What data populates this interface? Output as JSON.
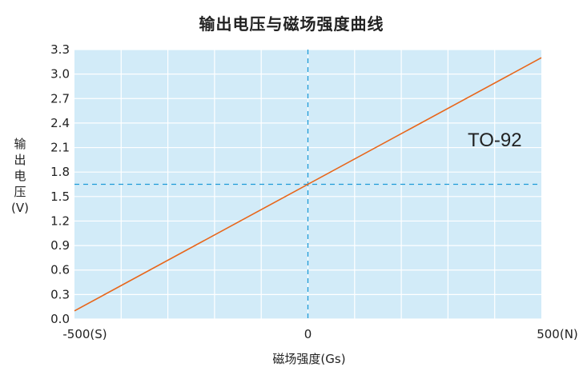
{
  "chart_data": {
    "type": "line",
    "title": "输出电压与磁场强度曲线",
    "xlabel": "磁场强度(Gs)",
    "ylabel_chars": [
      "输",
      "出",
      "电",
      "压",
      "(V)"
    ],
    "xlim": [
      -500,
      500
    ],
    "ylim": [
      0.0,
      3.3
    ],
    "x_ticks": [
      "-500(S)",
      "0",
      "500(N)"
    ],
    "y_ticks": [
      "0.0",
      "0.3",
      "0.6",
      "0.9",
      "1.2",
      "1.5",
      "1.8",
      "2.1",
      "2.4",
      "2.7",
      "3.0",
      "3.3"
    ],
    "grid": true,
    "series": [
      {
        "x": [
          -500,
          500
        ],
        "y": [
          0.1,
          3.2
        ],
        "color": "#e8661a"
      }
    ],
    "reference_lines": {
      "x": 0,
      "y": 1.65,
      "color": "#1e9bd7"
    },
    "annotation": "TO-92",
    "background_color": "#d2ebf8"
  }
}
